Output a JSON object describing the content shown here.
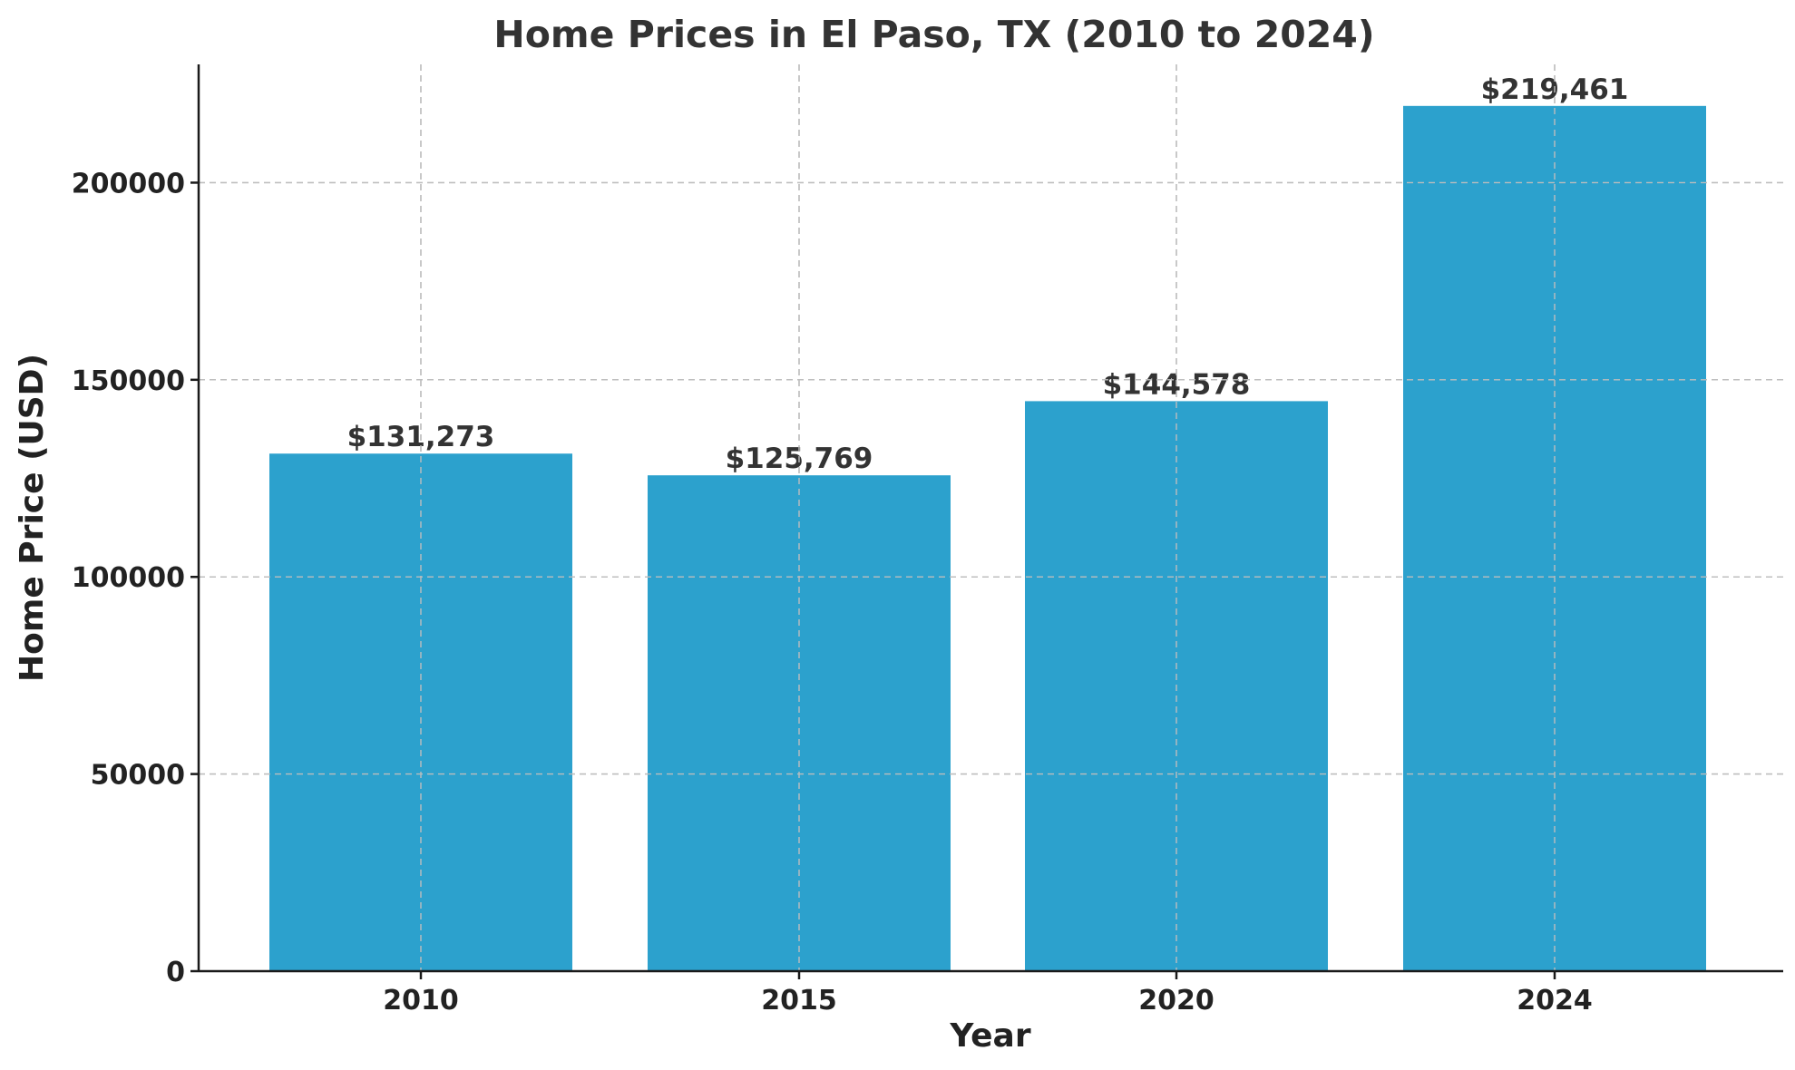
{
  "chart_data": {
    "type": "bar",
    "title": "Home Prices in El Paso, TX (2010 to 2024)",
    "xlabel": "Year",
    "ylabel": "Home Price (USD)",
    "categories": [
      "2010",
      "2015",
      "2020",
      "2024"
    ],
    "values": [
      131273,
      125769,
      144578,
      219461
    ],
    "data_labels": [
      "$131,273",
      "$125,769",
      "$144,578",
      "$219,461"
    ],
    "yticks": [
      0,
      50000,
      100000,
      150000,
      200000
    ],
    "ylim": [
      0,
      230000
    ],
    "grid": true,
    "bar_color": "#2ca1cd"
  }
}
